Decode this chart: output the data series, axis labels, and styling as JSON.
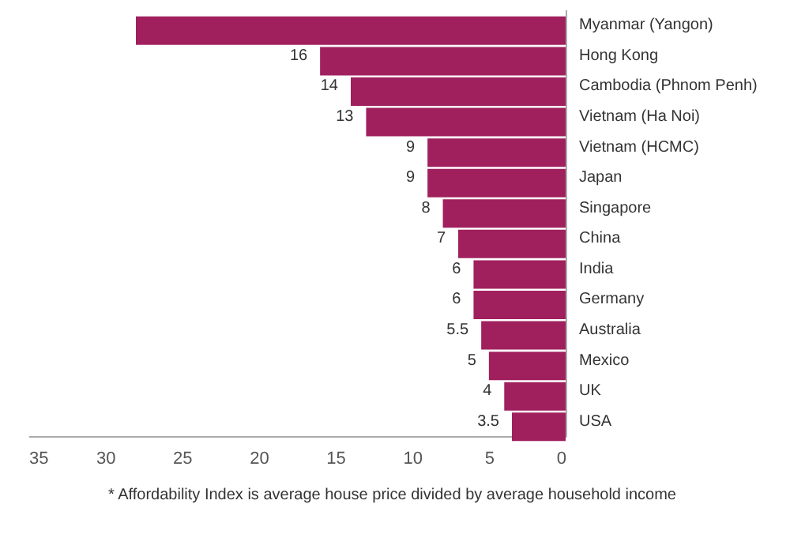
{
  "chart_data": {
    "type": "bar",
    "orientation": "horizontal",
    "categories": [
      "Myanmar (Yangon)",
      "Hong Kong",
      "Cambodia (Phnom Penh)",
      "Vietnam (Ha Noi)",
      "Vietnam (HCMC)",
      "Japan",
      "Singapore",
      "China",
      "India",
      "Germany",
      "Australia",
      "Mexico",
      "UK",
      "USA"
    ],
    "values": [
      28,
      16,
      14,
      13,
      9,
      9,
      8,
      7,
      6,
      6,
      5.5,
      5,
      4,
      3.5
    ],
    "value_labels": [
      null,
      "16",
      "14",
      "13",
      "9",
      "9",
      "8",
      "7",
      "6",
      "6",
      "5.5",
      "5",
      "4",
      "3.5"
    ],
    "color": "#a0205e",
    "xlim": [
      35,
      0
    ],
    "xticks": [
      35,
      30,
      25,
      20,
      15,
      10,
      5,
      0
    ],
    "grid": false,
    "annotations": [
      "* Affordability Index is average house price divided by average household income"
    ]
  }
}
